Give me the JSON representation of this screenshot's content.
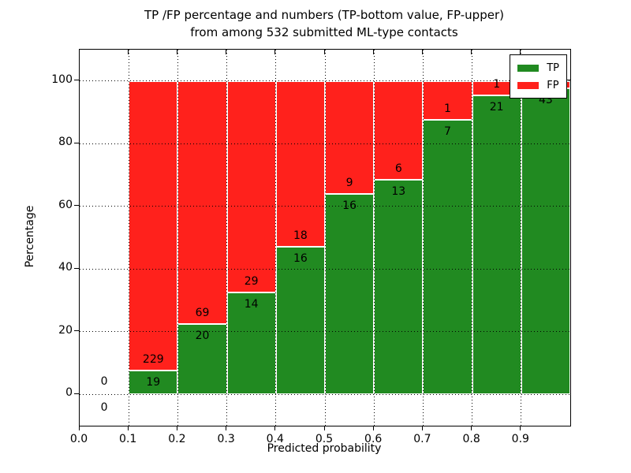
{
  "title": {
    "line1": "TP /FP percentage and numbers (TP-bottom value, FP-upper)",
    "line2": "from among 532 submitted ML-type contacts"
  },
  "chart_data": {
    "type": "bar",
    "stacked": true,
    "title": "TP /FP percentage and numbers (TP-bottom value, FP-upper) from among 532 submitted ML-type contacts",
    "xlabel": "Predicted probability",
    "ylabel": "Percentage",
    "xlim": [
      0.0,
      1.0
    ],
    "ylim": [
      -10,
      110
    ],
    "x_ticks": [
      "0.0",
      "0.1",
      "0.2",
      "0.3",
      "0.4",
      "0.5",
      "0.6",
      "0.7",
      "0.8",
      "0.9"
    ],
    "y_ticks": [
      "0",
      "20",
      "40",
      "60",
      "80",
      "100"
    ],
    "grid": true,
    "grid_style": "dotted",
    "total_contacts": 532,
    "legend": {
      "position": "upper right",
      "entries": [
        {
          "label": "TP",
          "color": "#218a21"
        },
        {
          "label": "FP",
          "color": "#ff211c"
        }
      ]
    },
    "series_note": "each bin stacks TP percentage (green, bottom) and FP percentage (red, top) summing to 100%",
    "bins": [
      {
        "range": [
          0.0,
          0.1
        ],
        "tp": 0,
        "fp": 0,
        "tp_pct": 0.0,
        "fp_pct": 0.0,
        "tp_label": "0",
        "fp_label": "0"
      },
      {
        "range": [
          0.1,
          0.2
        ],
        "tp": 19,
        "fp": 229,
        "tp_pct": 7.66,
        "fp_pct": 92.34,
        "tp_label": "19",
        "fp_label": "229"
      },
      {
        "range": [
          0.2,
          0.3
        ],
        "tp": 20,
        "fp": 69,
        "tp_pct": 22.47,
        "fp_pct": 77.53,
        "tp_label": "20",
        "fp_label": "69"
      },
      {
        "range": [
          0.3,
          0.4
        ],
        "tp": 14,
        "fp": 29,
        "tp_pct": 32.56,
        "fp_pct": 67.44,
        "tp_label": "14",
        "fp_label": "29"
      },
      {
        "range": [
          0.4,
          0.5
        ],
        "tp": 16,
        "fp": 18,
        "tp_pct": 47.06,
        "fp_pct": 52.94,
        "tp_label": "16",
        "fp_label": "18"
      },
      {
        "range": [
          0.5,
          0.6
        ],
        "tp": 16,
        "fp": 9,
        "tp_pct": 64.0,
        "fp_pct": 36.0,
        "tp_label": "16",
        "fp_label": "9"
      },
      {
        "range": [
          0.6,
          0.7
        ],
        "tp": 13,
        "fp": 6,
        "tp_pct": 68.42,
        "fp_pct": 31.58,
        "tp_label": "13",
        "fp_label": "6"
      },
      {
        "range": [
          0.7,
          0.8
        ],
        "tp": 7,
        "fp": 1,
        "tp_pct": 87.5,
        "fp_pct": 12.5,
        "tp_label": "7",
        "fp_label": "1"
      },
      {
        "range": [
          0.8,
          0.9
        ],
        "tp": 21,
        "fp": 1,
        "tp_pct": 95.45,
        "fp_pct": 4.55,
        "tp_label": "21",
        "fp_label": "1"
      },
      {
        "range": [
          0.9,
          1.0
        ],
        "tp": 43,
        "fp": 1,
        "tp_pct": 97.73,
        "fp_pct": 2.27,
        "tp_label": "43",
        "fp_label": "1"
      }
    ]
  },
  "colors": {
    "tp_green": "#218a21",
    "fp_red": "#ff211c",
    "axis": "#000000",
    "background": "#ffffff"
  }
}
